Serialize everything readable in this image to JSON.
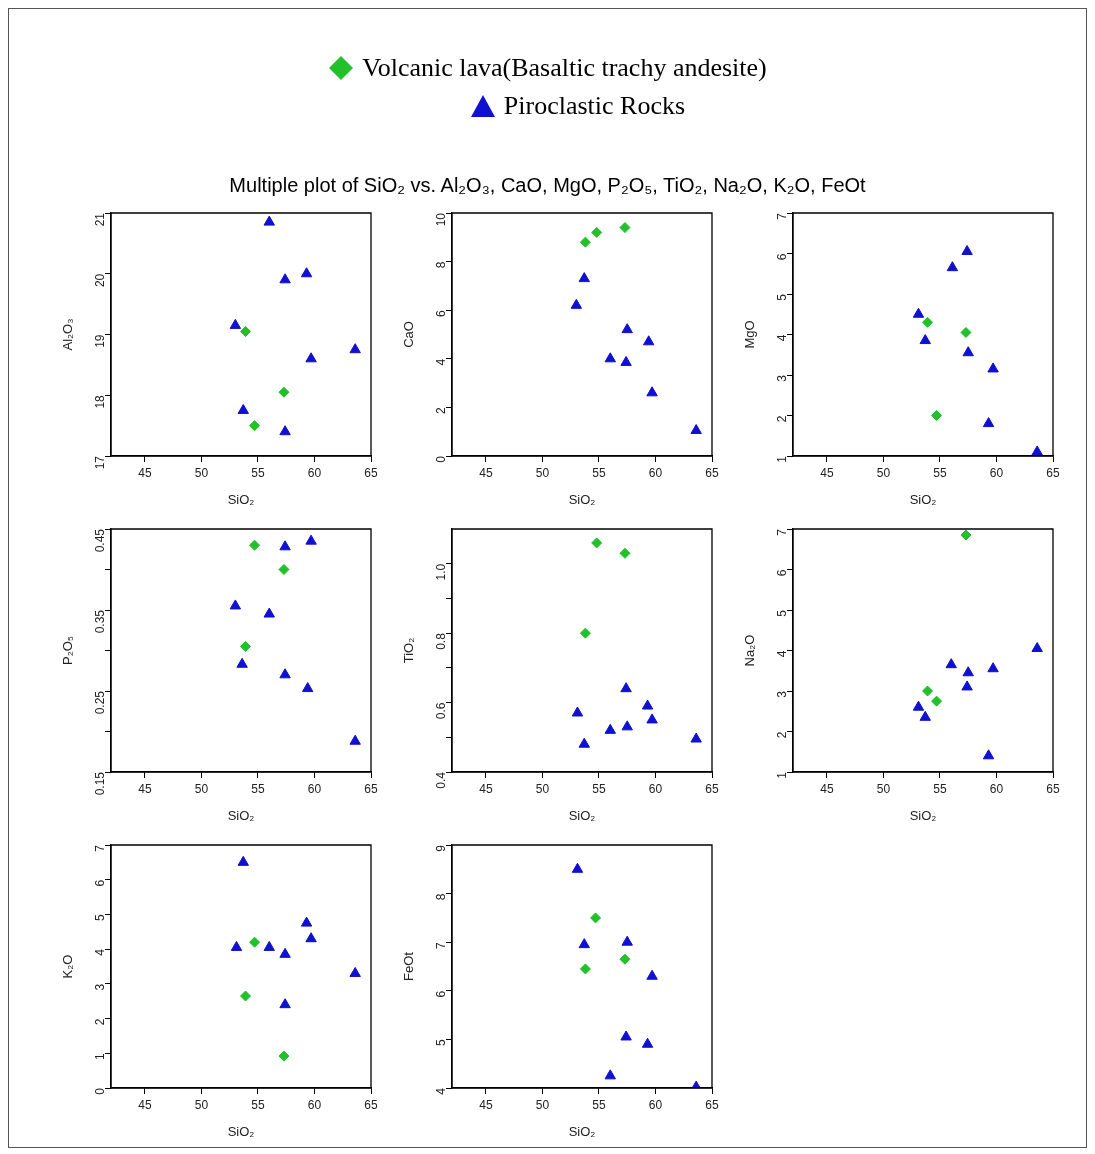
{
  "chart_data": [
    {
      "type": "scatter",
      "title": "Multiple plot of SiO₂ vs. Al₂O₃, CaO, MgO, P₂O₅, TiO₂, Na₂O, K₂O, FeOt",
      "legend": "top",
      "xlabel": "SiO₂",
      "ylabel": "Al₂O₃",
      "xlim": [
        42,
        65
      ],
      "xticks": [
        45,
        50,
        55,
        60,
        65
      ],
      "ylim": [
        17,
        21
      ],
      "yticks": [
        17,
        18,
        19,
        20,
        21
      ],
      "series": [
        {
          "name": "Volcanic lava(Basaltic trachy andesite)",
          "color": "#22c02a",
          "marker": "diamond",
          "x": [
            53.9,
            57.3,
            54.7
          ],
          "values": [
            19.05,
            18.05,
            17.5
          ]
        },
        {
          "name": "Piroclastic Rocks",
          "color": "#1010d0",
          "marker": "triangle",
          "x": [
            56.0,
            57.4,
            59.3,
            53.0,
            59.7,
            63.6,
            53.7,
            57.4
          ],
          "values": [
            20.85,
            19.9,
            20.0,
            19.15,
            18.6,
            18.75,
            17.75,
            17.4
          ]
        }
      ]
    },
    {
      "type": "scatter",
      "xlabel": "SiO₂",
      "ylabel": "CaO",
      "xlim": [
        42,
        65
      ],
      "xticks": [
        45,
        50,
        55,
        60,
        65
      ],
      "ylim": [
        0,
        10
      ],
      "yticks": [
        0,
        2,
        4,
        6,
        8,
        10
      ],
      "series": [
        {
          "color": "#22c02a",
          "marker": "diamond",
          "x": [
            53.8,
            54.8,
            57.3
          ],
          "values": [
            8.8,
            9.2,
            9.4
          ]
        },
        {
          "color": "#1010d0",
          "marker": "triangle",
          "x": [
            53.7,
            53.0,
            57.5,
            59.4,
            56.0,
            57.4,
            59.7,
            63.6
          ],
          "values": [
            7.3,
            6.2,
            5.2,
            4.7,
            4.0,
            3.85,
            2.6,
            1.05
          ]
        }
      ]
    },
    {
      "type": "scatter",
      "xlabel": "SiO₂",
      "ylabel": "MgO",
      "xlim": [
        42,
        65
      ],
      "xticks": [
        45,
        50,
        55,
        60,
        65
      ],
      "ylim": [
        1,
        7
      ],
      "yticks": [
        1,
        2,
        3,
        4,
        5,
        6,
        7
      ],
      "series": [
        {
          "color": "#22c02a",
          "marker": "diamond",
          "x": [
            53.9,
            57.3,
            54.7
          ],
          "values": [
            4.3,
            4.05,
            2.0
          ]
        },
        {
          "color": "#1010d0",
          "marker": "triangle",
          "x": [
            57.4,
            56.1,
            53.1,
            53.7,
            57.5,
            59.7,
            59.3,
            63.6
          ],
          "values": [
            6.05,
            5.65,
            4.5,
            3.85,
            3.55,
            3.15,
            1.8,
            1.1
          ]
        }
      ]
    },
    {
      "type": "scatter",
      "xlabel": "SiO₂",
      "ylabel": "P₂O₅",
      "xlim": [
        42,
        65
      ],
      "xticks": [
        45,
        50,
        55,
        60,
        65
      ],
      "ylim": [
        0.15,
        0.45
      ],
      "yticks": [
        0.15,
        {
          "value": 0.2,
          "label": null
        },
        0.25,
        {
          "value": 0.3,
          "label": null
        },
        0.35,
        {
          "value": 0.4,
          "label": null
        },
        0.45
      ],
      "series": [
        {
          "color": "#22c02a",
          "marker": "diamond",
          "x": [
            54.7,
            57.3,
            53.9
          ],
          "values": [
            0.43,
            0.4,
            0.305
          ]
        },
        {
          "color": "#1010d0",
          "marker": "triangle",
          "x": [
            57.4,
            59.7,
            53.0,
            56.0,
            53.6,
            57.4,
            59.4,
            63.6
          ],
          "values": [
            0.428,
            0.435,
            0.355,
            0.345,
            0.283,
            0.27,
            0.253,
            0.188
          ]
        }
      ]
    },
    {
      "type": "scatter",
      "xlabel": "SiO₂",
      "ylabel": "TiO₂",
      "xlim": [
        42,
        65
      ],
      "xticks": [
        45,
        50,
        55,
        60,
        65
      ],
      "ylim": [
        0.4,
        1.1
      ],
      "yticks": [
        {
          "value": 0.4,
          "label": "0.4"
        },
        {
          "value": 0.5,
          "label": null
        },
        {
          "value": 0.6,
          "label": "0.6"
        },
        {
          "value": 0.7,
          "label": null
        },
        {
          "value": 0.8,
          "label": "0.8"
        },
        {
          "value": 0.9,
          "label": null
        },
        {
          "value": 1.0,
          "label": "1.0"
        }
      ],
      "series": [
        {
          "color": "#22c02a",
          "marker": "diamond",
          "x": [
            54.8,
            57.3,
            53.8
          ],
          "values": [
            1.06,
            1.03,
            0.8
          ]
        },
        {
          "color": "#1010d0",
          "marker": "triangle",
          "x": [
            57.4,
            53.1,
            59.3,
            59.7,
            57.5,
            56.0,
            63.6,
            53.7
          ],
          "values": [
            0.64,
            0.57,
            0.59,
            0.55,
            0.53,
            0.52,
            0.495,
            0.48
          ]
        }
      ]
    },
    {
      "type": "scatter",
      "xlabel": "SiO₂",
      "ylabel": "Na₂O",
      "xlim": [
        42,
        65
      ],
      "xticks": [
        45,
        50,
        55,
        60,
        65
      ],
      "ylim": [
        1,
        7
      ],
      "yticks": [
        1,
        2,
        3,
        4,
        5,
        6,
        7
      ],
      "series": [
        {
          "color": "#22c02a",
          "marker": "diamond",
          "x": [
            57.3,
            53.9,
            54.7
          ],
          "values": [
            6.85,
            3.0,
            2.75
          ]
        },
        {
          "color": "#1010d0",
          "marker": "triangle",
          "x": [
            63.6,
            56.0,
            57.5,
            59.7,
            57.4,
            53.1,
            53.7,
            59.3
          ],
          "values": [
            4.05,
            3.65,
            3.45,
            3.55,
            3.1,
            2.6,
            2.35,
            1.4
          ]
        }
      ]
    },
    {
      "type": "scatter",
      "xlabel": "SiO₂",
      "ylabel": "K₂O",
      "xlim": [
        42,
        65
      ],
      "xticks": [
        45,
        50,
        55,
        60,
        65
      ],
      "ylim": [
        0,
        7
      ],
      "yticks": [
        0,
        1,
        2,
        3,
        4,
        5,
        6,
        7
      ],
      "series": [
        {
          "color": "#22c02a",
          "marker": "diamond",
          "x": [
            54.7,
            53.9,
            57.3
          ],
          "values": [
            4.2,
            2.65,
            0.92
          ]
        },
        {
          "color": "#1010d0",
          "marker": "triangle",
          "x": [
            53.7,
            59.3,
            59.7,
            53.1,
            56.0,
            57.4,
            63.6,
            57.4
          ],
          "values": [
            6.5,
            4.75,
            4.3,
            4.05,
            4.05,
            3.85,
            3.3,
            2.4
          ]
        }
      ]
    },
    {
      "type": "scatter",
      "xlabel": "SiO₂",
      "ylabel": "FeOt",
      "xlim": [
        42,
        65
      ],
      "xticks": [
        45,
        50,
        55,
        60,
        65
      ],
      "ylim": [
        4,
        9
      ],
      "yticks": [
        4,
        5,
        6,
        7,
        8,
        9
      ],
      "series": [
        {
          "color": "#22c02a",
          "marker": "diamond",
          "x": [
            54.7,
            57.3,
            53.8
          ],
          "values": [
            7.5,
            6.65,
            6.45
          ]
        },
        {
          "color": "#1010d0",
          "marker": "triangle",
          "x": [
            53.1,
            53.7,
            57.5,
            59.7,
            57.4,
            59.3,
            56.0,
            63.6
          ],
          "values": [
            8.5,
            6.95,
            7.0,
            6.3,
            5.05,
            4.9,
            4.25,
            4.02
          ]
        }
      ]
    }
  ]
}
